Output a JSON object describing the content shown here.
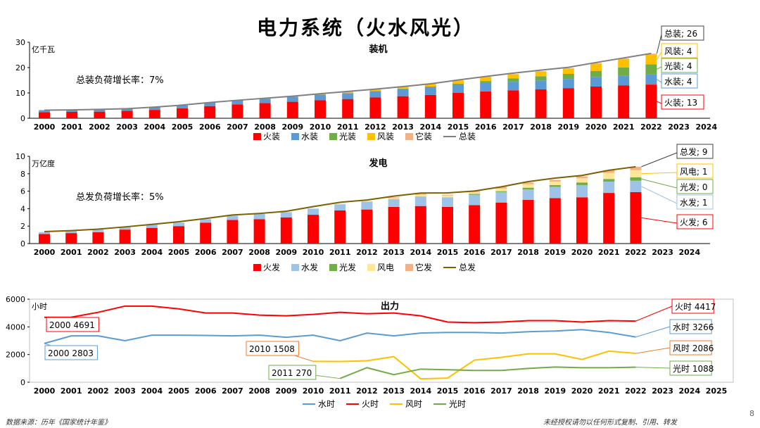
{
  "page": {
    "title": "电力系统（火水风光）",
    "source": "数据来源：历年《国家统计年鉴》",
    "copyright": "未经授权请勿以任何形式复制、引用、转发",
    "page_number": "8"
  },
  "chart_data": [
    {
      "type": "bar",
      "stacked": true,
      "title": "装机",
      "unit_label": "亿千瓦",
      "annotation": "总装负荷增长率：7%",
      "ylim": [
        0,
        30
      ],
      "yticks": [
        0,
        10,
        20,
        30
      ],
      "categories": [
        "2000",
        "2001",
        "2002",
        "2003",
        "2004",
        "2005",
        "2006",
        "2007",
        "2008",
        "2009",
        "2010",
        "2011",
        "2012",
        "2013",
        "2014",
        "2015",
        "2016",
        "2017",
        "2018",
        "2019",
        "2020",
        "2021",
        "2022",
        "2023",
        "2024"
      ],
      "series": [
        {
          "name": "火装",
          "color": "#ff0000",
          "values": [
            2.4,
            2.5,
            2.6,
            2.9,
            3.3,
            3.9,
            4.8,
            5.5,
            6.0,
            6.5,
            7.1,
            7.6,
            8.2,
            8.7,
            9.2,
            10.0,
            10.6,
            11.0,
            11.4,
            11.9,
            12.5,
            13.0,
            13.3,
            null,
            null
          ]
        },
        {
          "name": "水装",
          "color": "#5b9bd5",
          "values": [
            0.8,
            0.8,
            0.9,
            0.9,
            1.1,
            1.2,
            1.3,
            1.5,
            1.7,
            2.0,
            2.2,
            2.3,
            2.5,
            2.8,
            3.0,
            3.2,
            3.3,
            3.4,
            3.5,
            3.6,
            3.7,
            3.9,
            4.1,
            null,
            null
          ]
        },
        {
          "name": "光装",
          "color": "#70ad47",
          "values": [
            0,
            0,
            0,
            0,
            0,
            0,
            0,
            0,
            0,
            0,
            0,
            0,
            0,
            0.2,
            0.3,
            0.4,
            0.8,
            1.3,
            1.7,
            2.0,
            2.5,
            3.1,
            3.9,
            null,
            null
          ]
        },
        {
          "name": "风装",
          "color": "#ffc000",
          "values": [
            0,
            0,
            0,
            0,
            0,
            0.1,
            0.1,
            0.1,
            0.1,
            0.2,
            0.3,
            0.5,
            0.6,
            0.8,
            1.0,
            1.3,
            1.5,
            1.6,
            1.8,
            2.1,
            2.8,
            3.3,
            3.7,
            null,
            null
          ]
        },
        {
          "name": "它装",
          "color": "#f4b183",
          "values": [
            0,
            0,
            0,
            0,
            0,
            0,
            0,
            0,
            0.1,
            0.1,
            0.1,
            0.1,
            0.1,
            0.1,
            0.1,
            0.1,
            0.2,
            0.2,
            0.2,
            0.2,
            0.3,
            0.3,
            0.5,
            null,
            null
          ]
        },
        {
          "name": "总装",
          "color": "#808080",
          "type": "line",
          "values": [
            3.2,
            3.3,
            3.5,
            3.8,
            4.4,
            5.2,
            6.2,
            7.1,
            7.9,
            8.7,
            9.7,
            10.6,
            11.5,
            12.5,
            13.6,
            15.1,
            16.5,
            17.8,
            19.0,
            20.1,
            22.0,
            23.8,
            25.6,
            null,
            null
          ]
        }
      ],
      "callouts": [
        {
          "text": "总装; 26",
          "color": "#404040",
          "series": "总装"
        },
        {
          "text": "风装; 4",
          "color": "#ffc000",
          "series": "风装"
        },
        {
          "text": "光装; 4",
          "color": "#70ad47",
          "series": "光装"
        },
        {
          "text": "水装; 4",
          "color": "#5b9bd5",
          "series": "水装"
        },
        {
          "text": "火装; 13",
          "color": "#ff0000",
          "series": "火装"
        }
      ]
    },
    {
      "type": "bar",
      "stacked": true,
      "title": "发电",
      "unit_label": "万亿度",
      "annotation": "总发负荷增长率：5%",
      "ylim": [
        0,
        10
      ],
      "yticks": [
        0,
        2,
        4,
        6,
        8,
        10
      ],
      "categories": [
        "2000",
        "2001",
        "2002",
        "2003",
        "2004",
        "2005",
        "2006",
        "2007",
        "2008",
        "2009",
        "2010",
        "2011",
        "2012",
        "2013",
        "2014",
        "2015",
        "2016",
        "2017",
        "2018",
        "2019",
        "2020",
        "2021",
        "2022",
        "2023",
        "2024"
      ],
      "series": [
        {
          "name": "火发",
          "color": "#ff0000",
          "values": [
            1.1,
            1.2,
            1.3,
            1.6,
            1.8,
            2.0,
            2.4,
            2.7,
            2.8,
            3.0,
            3.3,
            3.8,
            3.9,
            4.2,
            4.3,
            4.2,
            4.4,
            4.7,
            5.0,
            5.2,
            5.3,
            5.8,
            5.9,
            null,
            null
          ]
        },
        {
          "name": "水发",
          "color": "#9dc3e6",
          "values": [
            0.2,
            0.3,
            0.3,
            0.3,
            0.4,
            0.4,
            0.4,
            0.5,
            0.6,
            0.6,
            0.7,
            0.7,
            0.9,
            0.9,
            1.1,
            1.1,
            1.2,
            1.2,
            1.2,
            1.3,
            1.4,
            1.3,
            1.3,
            null,
            null
          ]
        },
        {
          "name": "光发",
          "color": "#70ad47",
          "values": [
            0,
            0,
            0,
            0,
            0,
            0,
            0,
            0,
            0,
            0,
            0,
            0,
            0,
            0,
            0,
            0,
            0.1,
            0.1,
            0.2,
            0.2,
            0.3,
            0.3,
            0.4,
            null,
            null
          ]
        },
        {
          "name": "风电",
          "color": "#ffe699",
          "values": [
            0,
            0,
            0,
            0,
            0,
            0,
            0,
            0,
            0,
            0,
            0,
            0.1,
            0.1,
            0.1,
            0.2,
            0.2,
            0.2,
            0.3,
            0.4,
            0.4,
            0.5,
            0.7,
            0.8,
            null,
            null
          ]
        },
        {
          "name": "它发",
          "color": "#f4b183",
          "values": [
            0,
            0,
            0,
            0,
            0,
            0,
            0,
            0,
            0,
            0,
            0,
            0,
            0,
            0.1,
            0.1,
            0.1,
            0.1,
            0.2,
            0.2,
            0.2,
            0.2,
            0.3,
            0.4,
            null,
            null
          ]
        },
        {
          "name": "总发",
          "color": "#7f6000",
          "type": "line",
          "values": [
            1.37,
            1.48,
            1.65,
            1.91,
            2.2,
            2.5,
            2.87,
            3.28,
            3.45,
            3.7,
            4.23,
            4.73,
            4.99,
            5.43,
            5.79,
            5.81,
            6.02,
            6.5,
            7.1,
            7.5,
            7.8,
            8.4,
            8.8,
            null,
            null
          ]
        }
      ],
      "callouts": [
        {
          "text": "总发; 9",
          "color": "#404040",
          "series": "总发"
        },
        {
          "text": "风电; 1",
          "color": "#ffc000",
          "series": "风电"
        },
        {
          "text": "光发; 0",
          "color": "#70ad47",
          "series": "光发"
        },
        {
          "text": "水发; 1",
          "color": "#9dc3e6",
          "series": "水发"
        },
        {
          "text": "火发; 6",
          "color": "#ff0000",
          "series": "火发"
        }
      ]
    },
    {
      "type": "line",
      "title": "出力",
      "unit_label": "小时",
      "ylim": [
        0,
        6000
      ],
      "yticks": [
        0,
        2000,
        4000,
        6000
      ],
      "categories": [
        "2000",
        "2001",
        "2002",
        "2003",
        "2004",
        "2005",
        "2006",
        "2007",
        "2008",
        "2009",
        "2010",
        "2011",
        "2012",
        "2013",
        "2014",
        "2015",
        "2016",
        "2017",
        "2018",
        "2019",
        "2020",
        "2021",
        "2022",
        "2023",
        "2024",
        "2025"
      ],
      "series": [
        {
          "name": "水时",
          "color": "#5b9bd5",
          "values": [
            2803,
            3350,
            3350,
            3000,
            3400,
            3400,
            3380,
            3350,
            3400,
            3250,
            3400,
            3000,
            3550,
            3350,
            3550,
            3600,
            3600,
            3550,
            3650,
            3700,
            3800,
            3600,
            3266,
            null,
            null,
            null
          ]
        },
        {
          "name": "火时",
          "color": "#ff0000",
          "values": [
            4691,
            4700,
            5050,
            5500,
            5500,
            5300,
            5000,
            5000,
            4850,
            4800,
            4900,
            5050,
            4950,
            5000,
            4800,
            4350,
            4300,
            4350,
            4450,
            4450,
            4350,
            4450,
            4417,
            null,
            null,
            null
          ]
        },
        {
          "name": "风时",
          "color": "#ffc000",
          "values": [
            null,
            null,
            null,
            null,
            null,
            null,
            null,
            null,
            null,
            null,
            1508,
            1500,
            1550,
            1850,
            250,
            300,
            1600,
            1800,
            2050,
            2050,
            1650,
            2250,
            2086,
            null,
            null,
            null
          ]
        },
        {
          "name": "光时",
          "color": "#70ad47",
          "values": [
            null,
            null,
            null,
            null,
            null,
            null,
            null,
            null,
            null,
            null,
            null,
            270,
            1050,
            550,
            950,
            900,
            850,
            850,
            1000,
            1100,
            1050,
            1050,
            1088,
            null,
            null,
            null
          ]
        }
      ],
      "callouts": [
        {
          "text": "2000 4691",
          "color": "#ff0000",
          "series": "火时",
          "index": 0
        },
        {
          "text": "2000 2803",
          "color": "#5b9bd5",
          "series": "水时",
          "index": 0
        },
        {
          "text": "2010 1508",
          "color": "#ed7d31",
          "series": "风时",
          "index": 10
        },
        {
          "text": "2011 270",
          "color": "#70ad47",
          "series": "光时",
          "index": 11
        },
        {
          "text": "火时 4417",
          "color": "#ff0000",
          "series": "火时",
          "index": 22
        },
        {
          "text": "水时 3266",
          "color": "#5b9bd5",
          "series": "水时",
          "index": 22
        },
        {
          "text": "风时 2086",
          "color": "#ed7d31",
          "series": "风时",
          "index": 22
        },
        {
          "text": "光时 1088",
          "color": "#70ad47",
          "series": "光时",
          "index": 22
        }
      ]
    }
  ]
}
